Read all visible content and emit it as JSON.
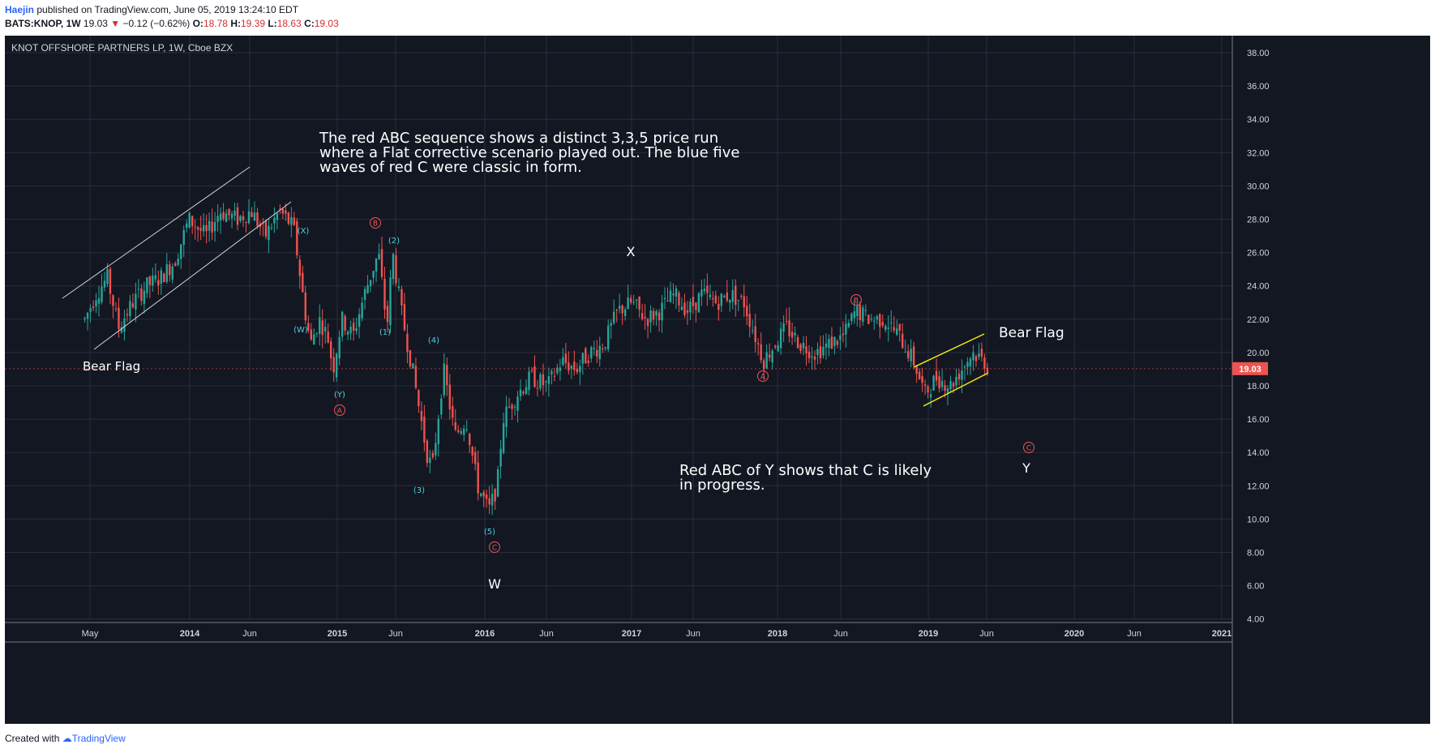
{
  "header": {
    "author": "Haejin",
    "published": "published on TradingView.com, June 05, 2019 13:24:10 EDT",
    "symbol": "BATS:KNOP, 1W",
    "last": "19.03",
    "change": "−0.12 (−0.62%)",
    "o_label": "O:",
    "o_value": "18.78",
    "h_label": "H:",
    "h_value": "19.39",
    "l_label": "L:",
    "l_value": "18.63",
    "c_label": "C:",
    "c_value": "19.03"
  },
  "chart_title": "KNOT OFFSHORE PARTNERS LP, 1W, Cboe BZX",
  "footer": {
    "created_with": "Created with",
    "brand": "TradingView"
  },
  "colors": {
    "background": "#131722",
    "up": "#26a69a",
    "down": "#ef5350",
    "grid": "#2a2e39",
    "yellow": "#f5e90e",
    "cyan": "#4dd0e1",
    "red_label": "#ef5350",
    "price_tag": "#ef5350"
  },
  "notes": {
    "top_note": [
      "The red ABC sequence shows a distinct 3,3,5 price run",
      "where a Flat corrective scenario played out. The blue five",
      "waves of red C were classic in form."
    ],
    "bottom_note": [
      "Red ABC of Y shows that C is likely",
      "in progress."
    ],
    "bear_flag_left": "Bear Flag",
    "bear_flag_right": "Bear Flag"
  },
  "wave_labels_white": [
    "W",
    "X",
    "Y"
  ],
  "wave_labels_red": [
    "A",
    "B",
    "C",
    "A",
    "B",
    "C"
  ],
  "wave_labels_cyan": [
    "(X)",
    "(W)",
    "(Y)",
    "(2)",
    "(1)",
    "(4)",
    "(3)",
    "(5)"
  ],
  "chart_data": {
    "type": "candlestick",
    "title": "KNOT OFFSHORE PARTNERS LP, 1W, Cboe BZX",
    "ylim": [
      4,
      39
    ],
    "y_ticks": [
      "4.00",
      "6.00",
      "8.00",
      "10.00",
      "12.00",
      "14.00",
      "16.00",
      "18.00",
      "20.00",
      "22.00",
      "24.00",
      "26.00",
      "28.00",
      "30.00",
      "32.00",
      "34.00",
      "36.00",
      "38.00"
    ],
    "x_ticks": [
      "May",
      "2014",
      "Jun",
      "2015",
      "Jun",
      "2016",
      "Jun",
      "2017",
      "Jun",
      "2018",
      "Jun",
      "2019",
      "Jun",
      "2020",
      "Jun",
      "2021"
    ],
    "last_price": "19.03",
    "price_path": [
      [
        "2013-04-15",
        22.0
      ],
      [
        "2013-05-13",
        23.5
      ],
      [
        "2013-06-10",
        24.5
      ],
      [
        "2013-07-08",
        21.5
      ],
      [
        "2013-08-12",
        23.0
      ],
      [
        "2013-09-16",
        24.0
      ],
      [
        "2013-10-21",
        24.5
      ],
      [
        "2013-11-25",
        25.5
      ],
      [
        "2013-12-30",
        28.0
      ],
      [
        "2014-02-10",
        27.0
      ],
      [
        "2014-03-17",
        28.5
      ],
      [
        "2014-04-28",
        28.0
      ],
      [
        "2014-06-02",
        28.5
      ],
      [
        "2014-07-07",
        27.0
      ],
      [
        "2014-08-11",
        28.5
      ],
      [
        "2014-09-15",
        27.5
      ],
      [
        "2014-10-13",
        22.5
      ],
      [
        "2014-10-27",
        20.5
      ],
      [
        "2014-11-17",
        22.0
      ],
      [
        "2014-12-08",
        21.0
      ],
      [
        "2014-12-22",
        19.0
      ],
      [
        "2015-01-12",
        22.0
      ],
      [
        "2015-02-09",
        21.0
      ],
      [
        "2015-03-09",
        23.5
      ],
      [
        "2015-04-13",
        26.0
      ],
      [
        "2015-05-04",
        21.5
      ],
      [
        "2015-05-18",
        26.0
      ],
      [
        "2015-06-08",
        22.5
      ],
      [
        "2015-07-06",
        19.0
      ],
      [
        "2015-08-10",
        14.0
      ],
      [
        "2015-08-24",
        13.0
      ],
      [
        "2015-09-21",
        19.0
      ],
      [
        "2015-10-19",
        15.0
      ],
      [
        "2015-11-16",
        16.0
      ],
      [
        "2015-12-14",
        12.0
      ],
      [
        "2016-01-11",
        10.5
      ],
      [
        "2016-02-01",
        12.0
      ],
      [
        "2016-02-15",
        16.0
      ],
      [
        "2016-03-21",
        17.5
      ],
      [
        "2016-04-25",
        18.5
      ],
      [
        "2016-06-06",
        18.0
      ],
      [
        "2016-07-11",
        19.5
      ],
      [
        "2016-08-15",
        19.0
      ],
      [
        "2016-09-19",
        20.0
      ],
      [
        "2016-10-24",
        20.5
      ],
      [
        "2016-11-28",
        22.5
      ],
      [
        "2017-01-02",
        23.0
      ],
      [
        "2017-02-06",
        22.0
      ],
      [
        "2017-03-13",
        22.5
      ],
      [
        "2017-04-17",
        23.5
      ],
      [
        "2017-05-22",
        22.5
      ],
      [
        "2017-06-26",
        23.5
      ],
      [
        "2017-07-31",
        23.0
      ],
      [
        "2017-09-04",
        23.5
      ],
      [
        "2017-10-09",
        23.0
      ],
      [
        "2017-11-06",
        21.0
      ],
      [
        "2017-11-27",
        19.5
      ],
      [
        "2017-12-25",
        20.5
      ],
      [
        "2018-01-22",
        21.5
      ],
      [
        "2018-02-26",
        20.5
      ],
      [
        "2018-04-02",
        20.0
      ],
      [
        "2018-05-07",
        20.5
      ],
      [
        "2018-06-11",
        21.0
      ],
      [
        "2018-07-09",
        22.5
      ],
      [
        "2018-08-13",
        22.0
      ],
      [
        "2018-09-17",
        22.0
      ],
      [
        "2018-10-22",
        21.0
      ],
      [
        "2018-11-26",
        19.5
      ],
      [
        "2018-12-24",
        17.5
      ],
      [
        "2019-01-21",
        18.5
      ],
      [
        "2019-02-25",
        18.0
      ],
      [
        "2019-03-25",
        19.0
      ],
      [
        "2019-04-22",
        20.0
      ],
      [
        "2019-05-20",
        19.5
      ],
      [
        "2019-06-03",
        19.03
      ]
    ]
  }
}
